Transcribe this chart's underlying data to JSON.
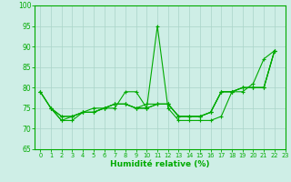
{
  "xlabel": "Humidité relative (%)",
  "xlim": [
    -0.5,
    23
  ],
  "ylim": [
    65,
    100
  ],
  "yticks": [
    65,
    70,
    75,
    80,
    85,
    90,
    95,
    100
  ],
  "xticks": [
    0,
    1,
    2,
    3,
    4,
    5,
    6,
    7,
    8,
    9,
    10,
    11,
    12,
    13,
    14,
    15,
    16,
    17,
    18,
    19,
    20,
    21,
    22,
    23
  ],
  "background_color": "#ceeee6",
  "grid_color": "#aad4c8",
  "line_color": "#00aa00",
  "line1_x": [
    0,
    1,
    2,
    3,
    4,
    5,
    6,
    7,
    8,
    9,
    10,
    11,
    12,
    13,
    14,
    15,
    16,
    17,
    18,
    19,
    20,
    21,
    22
  ],
  "line1_y": [
    79,
    75,
    72,
    72,
    74,
    74,
    75,
    75,
    79,
    79,
    75,
    95,
    75,
    72,
    72,
    72,
    72,
    73,
    79,
    79,
    81,
    87,
    89
  ],
  "line2_x": [
    0,
    1,
    2,
    3,
    4,
    5,
    6,
    7,
    8,
    9,
    10,
    11,
    12,
    13,
    14,
    15,
    16,
    17,
    18,
    19,
    20,
    21,
    22
  ],
  "line2_y": [
    79,
    75,
    72,
    73,
    74,
    75,
    75,
    76,
    76,
    75,
    76,
    76,
    76,
    73,
    73,
    73,
    74,
    79,
    79,
    80,
    80,
    80,
    89
  ],
  "line3_x": [
    0,
    1,
    2,
    3,
    4,
    5,
    6,
    7,
    8,
    9,
    10,
    11,
    12,
    13,
    14,
    15,
    16,
    17,
    18,
    19,
    20,
    21,
    22
  ],
  "line3_y": [
    79,
    75,
    73,
    73,
    74,
    74,
    75,
    76,
    76,
    75,
    75,
    76,
    76,
    73,
    73,
    73,
    74,
    79,
    79,
    80,
    80,
    80,
    89
  ],
  "line4_x": [
    1,
    2,
    3,
    4,
    5,
    6,
    7,
    8,
    9,
    10,
    11,
    12,
    13,
    14,
    15,
    16,
    17,
    18,
    19,
    20,
    21,
    22
  ],
  "line4_y": [
    75,
    73,
    73,
    74,
    74,
    75,
    76,
    76,
    75,
    75,
    76,
    76,
    73,
    73,
    73,
    74,
    79,
    79,
    80,
    80,
    80,
    89
  ]
}
